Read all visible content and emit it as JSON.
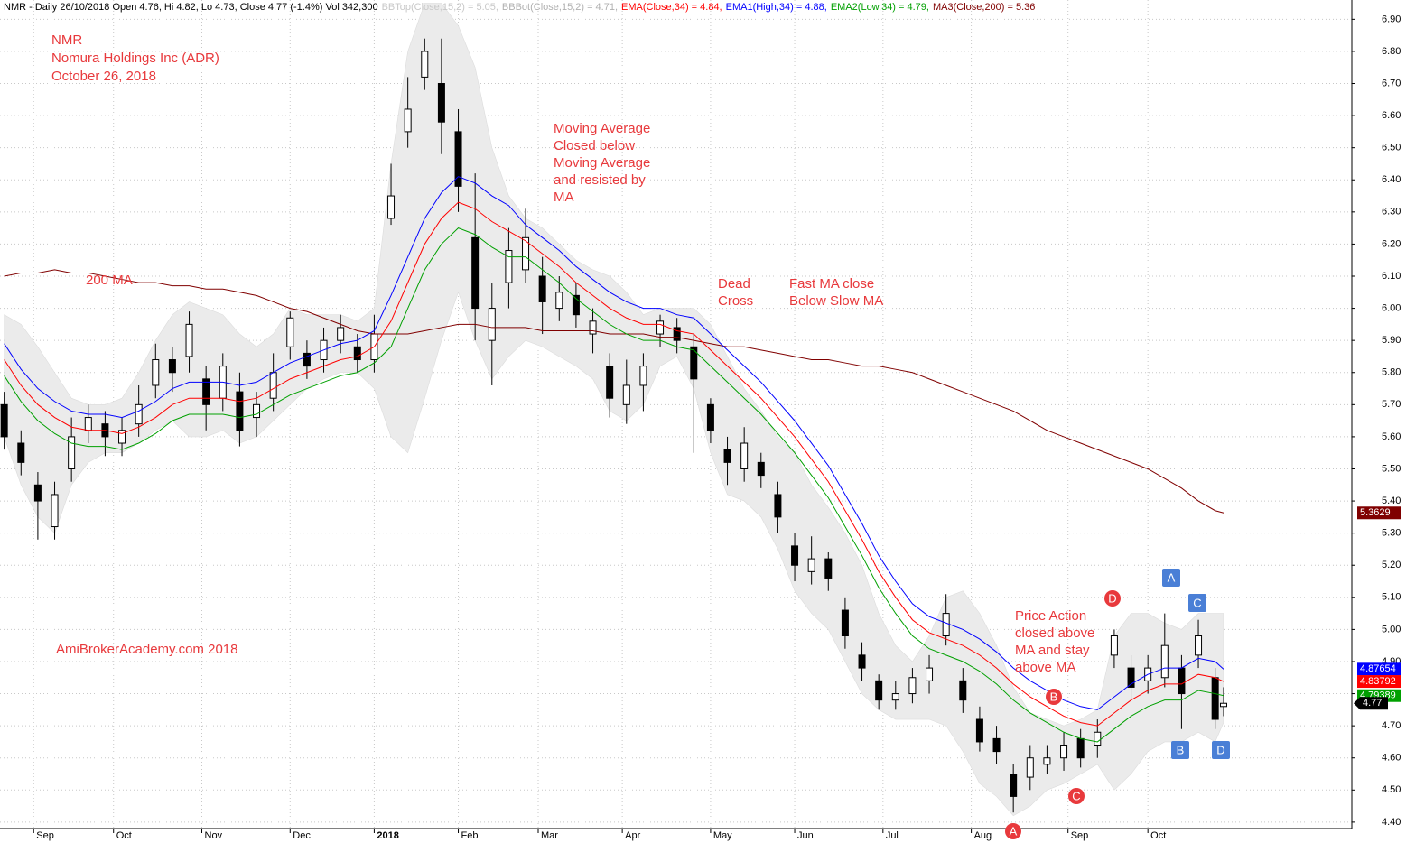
{
  "chart_data": {
    "type": "candlestick",
    "header": [
      {
        "text": "NMR - Daily 26/10/2018 Open 4.76, Hi 4.82, Lo 4.73, Close 4.77 (-1.4%) Vol 342,300",
        "color": "#000000"
      },
      {
        "text": "BBTop(Close,15,2) = 5.05,",
        "color": "#c8c8c8"
      },
      {
        "text": "BBBot(Close,15,2) = 4.71,",
        "color": "#b0b0b0"
      },
      {
        "text": "EMA(Close,34) = 4.84,",
        "color": "#ff0000"
      },
      {
        "text": "EMA1(High,34) = 4.88,",
        "color": "#0000ff"
      },
      {
        "text": "EMA2(Low,34) = 4.79,",
        "color": "#00a000"
      },
      {
        "text": "MA3(Close,200) = 5.36",
        "color": "#800000"
      }
    ],
    "annotations": [
      "NMR",
      "Nomura Holdings Inc (ADR)",
      "October 26, 2018",
      "200 MA",
      "Moving Average",
      "Closed below",
      "Moving Average",
      "and resisted by",
      "MA",
      "Dead",
      "Cross",
      "Fast MA close",
      "Below Slow MA",
      "Price Action",
      "closed above",
      "MA and stay",
      "above MA",
      "AmiBrokerAcademy.com  2018"
    ],
    "annotation_color": "#e8393c",
    "markers": [
      {
        "label": "D",
        "shape": "circle",
        "color": "#e8393c"
      },
      {
        "label": "B",
        "shape": "circle",
        "color": "#e8393c"
      },
      {
        "label": "C",
        "shape": "circle",
        "color": "#e8393c"
      },
      {
        "label": "A",
        "shape": "circle",
        "color": "#e8393c"
      },
      {
        "label": "A",
        "shape": "square",
        "color": "#4a7fd6"
      },
      {
        "label": "C",
        "shape": "square",
        "color": "#4a7fd6"
      },
      {
        "label": "B",
        "shape": "square",
        "color": "#4a7fd6"
      },
      {
        "label": "D",
        "shape": "square",
        "color": "#4a7fd6"
      }
    ],
    "x": [
      0,
      4,
      8,
      12,
      16,
      20,
      24,
      28,
      32,
      36,
      40,
      44,
      48,
      52,
      56,
      60,
      64,
      68,
      72,
      76,
      80,
      84,
      88,
      92,
      96,
      100,
      104,
      108,
      112,
      116,
      120,
      124,
      128,
      132,
      136,
      140,
      144,
      148,
      152,
      156,
      160,
      164,
      168,
      172,
      176,
      180,
      184,
      188,
      192,
      196,
      200,
      204,
      208,
      212,
      216,
      220,
      224,
      228,
      232,
      236,
      240,
      244,
      248,
      252,
      256,
      260,
      264,
      268,
      272,
      276,
      280,
      284,
      288,
      290
    ],
    "open": [
      5.7,
      5.58,
      5.45,
      5.32,
      5.5,
      5.62,
      5.64,
      5.58,
      5.64,
      5.76,
      5.84,
      5.85,
      5.78,
      5.72,
      5.74,
      5.66,
      5.72,
      5.88,
      5.86,
      5.84,
      5.9,
      5.88,
      5.84,
      6.28,
      6.55,
      6.72,
      6.7,
      6.55,
      6.22,
      5.9,
      6.08,
      6.12,
      6.1,
      6.0,
      6.04,
      5.92,
      5.82,
      5.7,
      5.76,
      5.92,
      5.94,
      5.88,
      5.7,
      5.56,
      5.5,
      5.52,
      5.42,
      5.26,
      5.18,
      5.22,
      5.06,
      4.92,
      4.84,
      4.78,
      4.8,
      4.84,
      4.98,
      4.84,
      4.72,
      4.66,
      4.55,
      4.54,
      4.58,
      4.6,
      4.66,
      4.64,
      4.92,
      4.88,
      4.84,
      4.85,
      4.88,
      4.92,
      4.85,
      4.76
    ],
    "high": [
      5.74,
      5.62,
      5.49,
      5.46,
      5.66,
      5.7,
      5.68,
      5.66,
      5.76,
      5.89,
      5.88,
      5.99,
      5.82,
      5.86,
      5.8,
      5.74,
      5.86,
      5.99,
      5.9,
      5.94,
      5.98,
      5.92,
      5.98,
      6.45,
      6.72,
      6.84,
      6.84,
      6.62,
      6.42,
      6.08,
      6.25,
      6.31,
      6.16,
      6.1,
      6.08,
      6.0,
      5.86,
      5.84,
      5.86,
      5.98,
      5.97,
      5.92,
      5.72,
      5.6,
      5.63,
      5.55,
      5.46,
      5.3,
      5.29,
      5.24,
      5.1,
      4.96,
      4.86,
      4.84,
      4.88,
      4.92,
      5.11,
      4.88,
      4.76,
      4.7,
      4.58,
      4.64,
      4.64,
      4.68,
      4.69,
      4.72,
      5.0,
      4.92,
      4.92,
      5.05,
      4.92,
      5.03,
      4.88,
      4.82
    ],
    "low": [
      5.56,
      5.48,
      5.28,
      5.28,
      5.46,
      5.58,
      5.54,
      5.54,
      5.6,
      5.72,
      5.74,
      5.8,
      5.62,
      5.68,
      5.57,
      5.6,
      5.68,
      5.84,
      5.78,
      5.8,
      5.86,
      5.8,
      5.8,
      6.26,
      6.5,
      6.68,
      6.48,
      6.3,
      5.9,
      5.76,
      6.0,
      6.08,
      5.92,
      5.96,
      5.94,
      5.86,
      5.66,
      5.64,
      5.68,
      5.88,
      5.86,
      5.55,
      5.58,
      5.45,
      5.46,
      5.44,
      5.3,
      5.15,
      5.14,
      5.12,
      4.94,
      4.84,
      4.75,
      4.75,
      4.77,
      4.8,
      4.95,
      4.74,
      4.62,
      4.58,
      4.43,
      4.5,
      4.55,
      4.56,
      4.57,
      4.6,
      4.88,
      4.78,
      4.8,
      4.82,
      4.69,
      4.88,
      4.69,
      4.73
    ],
    "close": [
      5.6,
      5.52,
      5.4,
      5.42,
      5.6,
      5.66,
      5.6,
      5.62,
      5.7,
      5.84,
      5.8,
      5.95,
      5.7,
      5.82,
      5.62,
      5.7,
      5.8,
      5.97,
      5.82,
      5.9,
      5.94,
      5.84,
      5.92,
      6.35,
      6.62,
      6.8,
      6.58,
      6.38,
      6.0,
      6.0,
      6.18,
      6.22,
      6.02,
      6.05,
      5.98,
      5.96,
      5.72,
      5.76,
      5.82,
      5.96,
      5.9,
      5.78,
      5.62,
      5.52,
      5.58,
      5.48,
      5.35,
      5.2,
      5.22,
      5.16,
      4.98,
      4.88,
      4.78,
      4.8,
      4.85,
      4.88,
      5.05,
      4.78,
      4.65,
      4.62,
      4.48,
      4.6,
      4.6,
      4.64,
      4.6,
      4.68,
      4.98,
      4.82,
      4.88,
      4.95,
      4.8,
      4.98,
      4.72,
      4.77
    ],
    "close_tag": true,
    "up_color": "#ffffff",
    "down_color": "#000000",
    "series": [
      {
        "color": "#800000",
        "style": "line",
        "tag": true,
        "values": [
          6.1,
          6.11,
          6.11,
          6.12,
          6.11,
          6.11,
          6.1,
          6.09,
          6.08,
          6.08,
          6.07,
          6.07,
          6.06,
          6.06,
          6.05,
          6.04,
          6.02,
          6.0,
          5.99,
          5.97,
          5.95,
          5.93,
          5.92,
          5.92,
          5.92,
          5.93,
          5.94,
          5.95,
          5.95,
          5.94,
          5.94,
          5.94,
          5.93,
          5.93,
          5.93,
          5.93,
          5.92,
          5.92,
          5.92,
          5.91,
          5.91,
          5.9,
          5.89,
          5.88,
          5.88,
          5.87,
          5.86,
          5.85,
          5.84,
          5.84,
          5.83,
          5.82,
          5.82,
          5.81,
          5.8,
          5.78,
          5.76,
          5.74,
          5.72,
          5.7,
          5.68,
          5.65,
          5.62,
          5.6,
          5.58,
          5.56,
          5.54,
          5.52,
          5.5,
          5.47,
          5.44,
          5.4,
          5.37,
          5.3629
        ]
      },
      {
        "color": "#0000ff",
        "style": "line",
        "tag": true,
        "values": [
          5.89,
          5.81,
          5.75,
          5.71,
          5.68,
          5.67,
          5.67,
          5.66,
          5.68,
          5.71,
          5.75,
          5.77,
          5.77,
          5.77,
          5.76,
          5.77,
          5.8,
          5.83,
          5.85,
          5.87,
          5.89,
          5.9,
          5.93,
          6.04,
          6.16,
          6.28,
          6.36,
          6.41,
          6.39,
          6.35,
          6.32,
          6.26,
          6.22,
          6.18,
          6.13,
          6.09,
          6.05,
          6.02,
          6.0,
          6.0,
          5.98,
          5.97,
          5.92,
          5.87,
          5.82,
          5.77,
          5.71,
          5.65,
          5.58,
          5.51,
          5.42,
          5.33,
          5.23,
          5.15,
          5.08,
          5.04,
          5.02,
          5.0,
          4.97,
          4.93,
          4.88,
          4.84,
          4.81,
          4.78,
          4.76,
          4.75,
          4.79,
          4.83,
          4.86,
          4.88,
          4.88,
          4.91,
          4.9,
          4.87654
        ]
      },
      {
        "color": "#ff0000",
        "style": "line",
        "tag": true,
        "values": [
          5.84,
          5.76,
          5.7,
          5.66,
          5.63,
          5.62,
          5.62,
          5.61,
          5.63,
          5.66,
          5.7,
          5.72,
          5.72,
          5.72,
          5.71,
          5.72,
          5.75,
          5.78,
          5.8,
          5.82,
          5.84,
          5.85,
          5.88,
          5.96,
          6.08,
          6.2,
          6.28,
          6.33,
          6.31,
          6.27,
          6.24,
          6.21,
          6.17,
          6.13,
          6.08,
          6.04,
          6.0,
          5.97,
          5.95,
          5.95,
          5.93,
          5.92,
          5.87,
          5.82,
          5.77,
          5.72,
          5.66,
          5.6,
          5.53,
          5.46,
          5.37,
          5.28,
          5.18,
          5.1,
          5.03,
          4.99,
          4.97,
          4.95,
          4.92,
          4.88,
          4.83,
          4.79,
          4.76,
          4.73,
          4.71,
          4.7,
          4.74,
          4.78,
          4.81,
          4.83,
          4.83,
          4.86,
          4.85,
          4.83792
        ]
      },
      {
        "color": "#00a000",
        "style": "line",
        "tag": true,
        "values": [
          5.79,
          5.71,
          5.65,
          5.61,
          5.58,
          5.57,
          5.57,
          5.56,
          5.58,
          5.61,
          5.65,
          5.67,
          5.67,
          5.67,
          5.66,
          5.67,
          5.7,
          5.73,
          5.75,
          5.77,
          5.79,
          5.8,
          5.83,
          5.88,
          6.0,
          6.12,
          6.2,
          6.25,
          6.23,
          6.19,
          6.16,
          6.16,
          6.12,
          6.08,
          6.03,
          5.99,
          5.95,
          5.92,
          5.9,
          5.9,
          5.88,
          5.87,
          5.82,
          5.77,
          5.72,
          5.67,
          5.61,
          5.55,
          5.48,
          5.41,
          5.32,
          5.23,
          5.13,
          5.05,
          4.98,
          4.94,
          4.92,
          4.9,
          4.87,
          4.83,
          4.78,
          4.74,
          4.71,
          4.68,
          4.66,
          4.65,
          4.69,
          4.73,
          4.76,
          4.78,
          4.78,
          4.81,
          4.8,
          4.79389
        ]
      },
      {
        "color": "#ebebeb",
        "style": "band-top",
        "values": [
          5.98,
          5.95,
          5.88,
          5.8,
          5.72,
          5.7,
          5.7,
          5.72,
          5.8,
          5.9,
          5.98,
          6.02,
          6.0,
          5.98,
          5.92,
          5.88,
          5.92,
          6.0,
          5.98,
          5.98,
          5.98,
          5.96,
          6.0,
          6.45,
          6.8,
          6.95,
          6.95,
          6.88,
          6.75,
          6.5,
          6.35,
          6.28,
          6.25,
          6.2,
          6.15,
          6.12,
          6.1,
          6.05,
          5.98,
          6.0,
          6.0,
          6.0,
          5.95,
          5.85,
          5.75,
          5.68,
          5.6,
          5.55,
          5.45,
          5.38,
          5.3,
          5.2,
          5.05,
          4.95,
          4.9,
          4.98,
          5.1,
          5.12,
          5.05,
          4.95,
          4.82,
          4.74,
          4.72,
          4.7,
          4.72,
          4.75,
          4.98,
          5.05,
          5.05,
          5.02,
          5.0,
          5.05,
          5.05,
          5.05
        ]
      },
      {
        "color": "#ebebeb",
        "style": "band-bottom",
        "values": [
          5.6,
          5.45,
          5.35,
          5.3,
          5.45,
          5.52,
          5.55,
          5.55,
          5.58,
          5.62,
          5.65,
          5.6,
          5.6,
          5.62,
          5.58,
          5.6,
          5.65,
          5.7,
          5.75,
          5.78,
          5.8,
          5.8,
          5.75,
          5.6,
          5.55,
          5.72,
          5.9,
          6.05,
          5.9,
          5.78,
          5.85,
          5.9,
          5.88,
          5.85,
          5.82,
          5.78,
          5.68,
          5.65,
          5.7,
          5.82,
          5.85,
          5.75,
          5.55,
          5.42,
          5.4,
          5.35,
          5.25,
          5.12,
          5.05,
          5.0,
          4.9,
          4.8,
          4.75,
          4.72,
          4.72,
          4.72,
          4.7,
          4.62,
          4.52,
          4.48,
          4.42,
          4.45,
          4.5,
          4.52,
          4.55,
          4.58,
          4.5,
          4.55,
          4.62,
          4.65,
          4.65,
          4.68,
          4.65,
          4.71
        ]
      }
    ],
    "xlim": [
      -1,
      320.5
    ],
    "xticks": [
      {
        "value": 7,
        "label": "Sep"
      },
      {
        "value": 26,
        "label": "Oct"
      },
      {
        "value": 47,
        "label": "Nov"
      },
      {
        "value": 68,
        "label": "Dec"
      },
      {
        "value": 88,
        "label": "2018",
        "bold": true
      },
      {
        "value": 108,
        "label": "Feb"
      },
      {
        "value": 127,
        "label": "Mar"
      },
      {
        "value": 147,
        "label": "Apr"
      },
      {
        "value": 168,
        "label": "May"
      },
      {
        "value": 188,
        "label": "Jun"
      },
      {
        "value": 209,
        "label": "Jul"
      },
      {
        "value": 230,
        "label": "Aug"
      },
      {
        "value": 253,
        "label": "Sep"
      },
      {
        "value": 272,
        "label": "Oct"
      }
    ],
    "ylim": [
      4.38,
      6.96
    ],
    "yticks": [
      {
        "value": 4.4,
        "label": "4.40"
      },
      {
        "value": 4.5,
        "label": "4.50"
      },
      {
        "value": 4.6,
        "label": "4.60"
      },
      {
        "value": 4.7,
        "label": "4.70"
      },
      {
        "value": 4.8,
        "label": "4.80"
      },
      {
        "value": 4.9,
        "label": "4.90"
      },
      {
        "value": 5.0,
        "label": "5.00"
      },
      {
        "value": 5.1,
        "label": "5.10"
      },
      {
        "value": 5.2,
        "label": "5.20"
      },
      {
        "value": 5.3,
        "label": "5.30"
      },
      {
        "value": 5.4,
        "label": "5.40"
      },
      {
        "value": 5.5,
        "label": "5.50"
      },
      {
        "value": 5.6,
        "label": "5.60"
      },
      {
        "value": 5.7,
        "label": "5.70"
      },
      {
        "value": 5.8,
        "label": "5.80"
      },
      {
        "value": 5.9,
        "label": "5.90"
      },
      {
        "value": 6.0,
        "label": "6.00"
      },
      {
        "value": 6.1,
        "label": "6.10"
      },
      {
        "value": 6.2,
        "label": "6.20"
      },
      {
        "value": 6.3,
        "label": "6.30"
      },
      {
        "value": 6.4,
        "label": "6.40"
      },
      {
        "value": 6.5,
        "label": "6.50"
      },
      {
        "value": 6.6,
        "label": "6.60"
      },
      {
        "value": 6.7,
        "label": "6.70"
      },
      {
        "value": 6.8,
        "label": "6.80"
      },
      {
        "value": 6.9,
        "label": "6.90"
      }
    ],
    "grid": true
  }
}
